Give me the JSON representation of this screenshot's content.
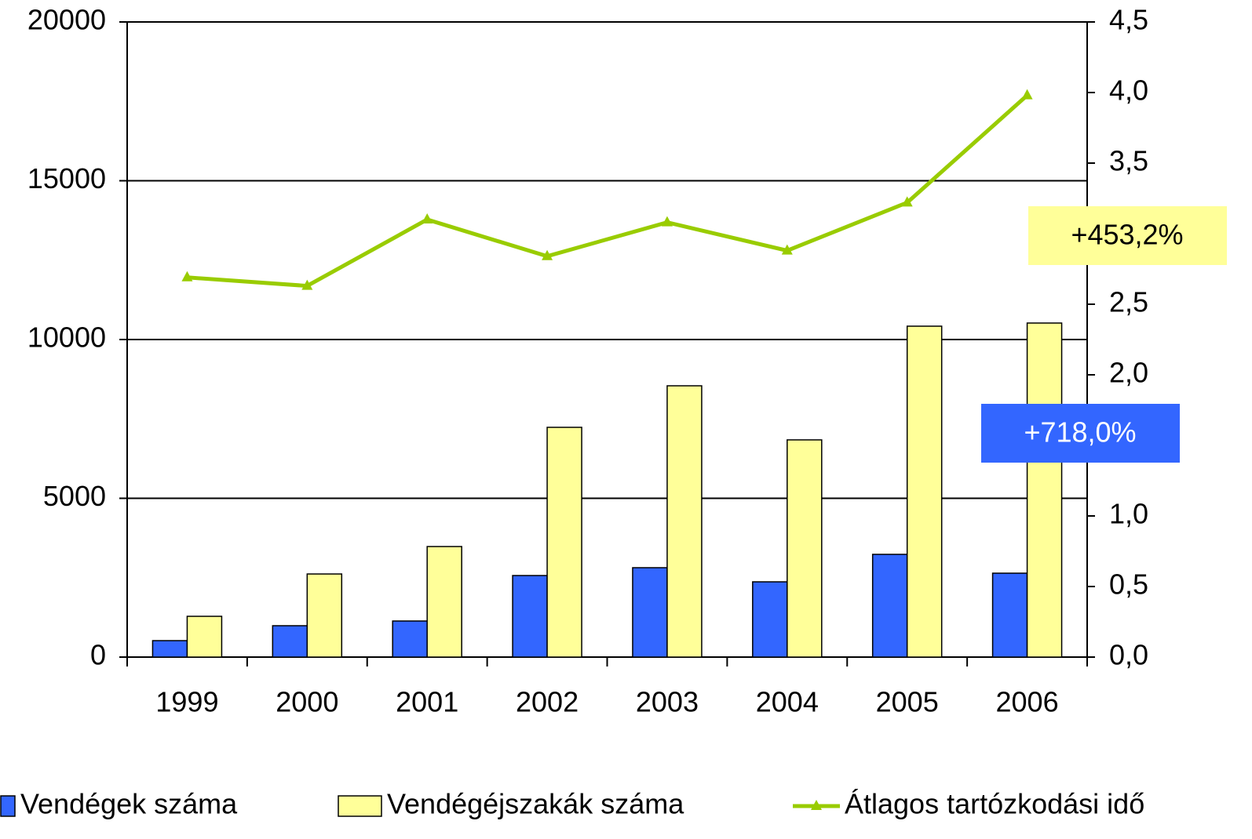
{
  "chart_data": {
    "type": "bar",
    "categories": [
      "1999",
      "2000",
      "2001",
      "2002",
      "2003",
      "2004",
      "2005",
      "2006"
    ],
    "series": [
      {
        "name": "Vendégek száma",
        "color": "#3366ff",
        "values": [
          518,
          988,
          1136,
          2568,
          2815,
          2370,
          3235,
          2642
        ]
      },
      {
        "name": "Vendégéjszakák száma",
        "color": "#ffff99",
        "values": [
          1284,
          2617,
          3481,
          7235,
          8543,
          6840,
          10420,
          10519
        ]
      },
      {
        "name": "Átlagos tartózkodási idő",
        "color": "#99cc00",
        "type": "line",
        "axis": "y2",
        "values": [
          2.69,
          2.63,
          3.1,
          2.84,
          3.08,
          2.88,
          3.22,
          3.98
        ]
      }
    ],
    "ylim": [
      0,
      20000
    ],
    "yticks": [
      0,
      5000,
      10000,
      15000,
      20000
    ],
    "y2lim": [
      0,
      4.5
    ],
    "y2ticks": [
      {
        "value": 0,
        "label": "0,0"
      },
      {
        "value": 0.5,
        "label": "0,5"
      },
      {
        "value": 1,
        "label": "1,0"
      },
      {
        "value": 1.5,
        "label": "1,5"
      },
      {
        "value": 2,
        "label": "2,0"
      },
      {
        "value": 2.5,
        "label": "2,5"
      },
      {
        "value": 3,
        "label": "3,0"
      },
      {
        "value": 3.5,
        "label": "3,5"
      },
      {
        "value": 4,
        "label": "4,0"
      },
      {
        "value": 4.5,
        "label": "4,5"
      }
    ],
    "grid": true,
    "annotations": [
      {
        "text": "+453,2%",
        "color": "#ffff99",
        "text_color": "#000000"
      },
      {
        "text": "+718,0%",
        "color": "#3366ff",
        "text_color": "#ffffff"
      }
    ]
  }
}
